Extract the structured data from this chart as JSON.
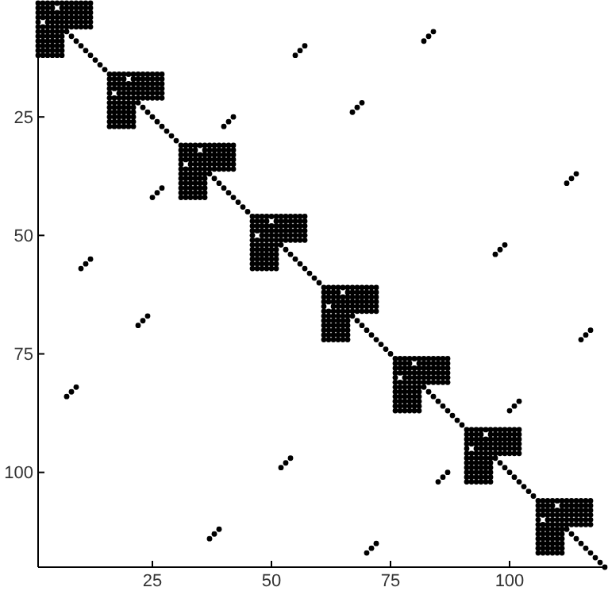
{
  "chart_data": {
    "type": "scatter",
    "xlim": [
      1,
      120
    ],
    "ylim": [
      120,
      1
    ],
    "xticks": [
      25,
      50,
      75,
      100
    ],
    "yticks": [
      25,
      50,
      75,
      100
    ],
    "marker": "circle",
    "series": [
      {
        "color": "#000000",
        "x": [
          1,
          2,
          3,
          4,
          5,
          6,
          7,
          8,
          9,
          10,
          11,
          12,
          1,
          2,
          3,
          4,
          6,
          7,
          8,
          9,
          10,
          11,
          12,
          1,
          2,
          3,
          4,
          5,
          6,
          7,
          8,
          9,
          10,
          11,
          12,
          1,
          2,
          3,
          4,
          5,
          6,
          7,
          8,
          9,
          10,
          11,
          12,
          1,
          3,
          4,
          5,
          6,
          7,
          8,
          9,
          10,
          11,
          12,
          1,
          2,
          3,
          4,
          5,
          6,
          7,
          8,
          9,
          10,
          11,
          12,
          1,
          2,
          3,
          4,
          5,
          6,
          1,
          2,
          3,
          4,
          5,
          6,
          1,
          2,
          3,
          4,
          5,
          6,
          1,
          2,
          3,
          4,
          5,
          6,
          1,
          2,
          3,
          4,
          5,
          6,
          1,
          2,
          3,
          4,
          5,
          6
        ],
        "values": [
          1,
          1,
          1,
          1,
          1,
          1,
          1,
          1,
          1,
          1,
          1,
          1,
          2,
          2,
          2,
          2,
          2,
          2,
          2,
          2,
          2,
          2,
          2,
          3,
          3,
          3,
          3,
          3,
          3,
          3,
          3,
          3,
          3,
          3,
          3,
          4,
          4,
          4,
          4,
          4,
          4,
          4,
          4,
          4,
          4,
          4,
          4,
          5,
          5,
          5,
          5,
          5,
          5,
          5,
          5,
          5,
          5,
          5,
          6,
          6,
          6,
          6,
          6,
          6,
          6,
          6,
          6,
          6,
          6,
          6,
          7,
          7,
          7,
          7,
          7,
          7,
          8,
          8,
          8,
          8,
          8,
          8,
          9,
          9,
          9,
          9,
          9,
          9,
          10,
          10,
          10,
          10,
          10,
          10,
          11,
          11,
          11,
          11,
          11,
          11,
          12,
          12,
          12,
          12,
          12,
          12
        ]
      },
      {
        "color": "#000000",
        "x": [
          16,
          17,
          18,
          19,
          20,
          21,
          22,
          23,
          24,
          25,
          26,
          27,
          16,
          17,
          18,
          19,
          21,
          22,
          23,
          24,
          25,
          26,
          27,
          16,
          17,
          18,
          19,
          20,
          21,
          22,
          23,
          24,
          25,
          26,
          27,
          16,
          17,
          18,
          19,
          20,
          21,
          22,
          23,
          24,
          25,
          26,
          27,
          16,
          18,
          19,
          20,
          21,
          22,
          23,
          24,
          25,
          26,
          27,
          16,
          17,
          18,
          19,
          20,
          21,
          22,
          23,
          24,
          25,
          26,
          27,
          16,
          17,
          18,
          19,
          20,
          21,
          16,
          17,
          18,
          19,
          20,
          21,
          16,
          17,
          18,
          19,
          20,
          21,
          16,
          17,
          18,
          19,
          20,
          21,
          16,
          17,
          18,
          19,
          20,
          21,
          16,
          17,
          18,
          19,
          20,
          21
        ],
        "values": [
          16,
          16,
          16,
          16,
          16,
          16,
          16,
          16,
          16,
          16,
          16,
          16,
          17,
          17,
          17,
          17,
          17,
          17,
          17,
          17,
          17,
          17,
          17,
          18,
          18,
          18,
          18,
          18,
          18,
          18,
          18,
          18,
          18,
          18,
          18,
          19,
          19,
          19,
          19,
          19,
          19,
          19,
          19,
          19,
          19,
          19,
          19,
          20,
          20,
          20,
          20,
          20,
          20,
          20,
          20,
          20,
          20,
          20,
          21,
          21,
          21,
          21,
          21,
          21,
          21,
          21,
          21,
          21,
          21,
          21,
          22,
          22,
          22,
          22,
          22,
          22,
          23,
          23,
          23,
          23,
          23,
          23,
          24,
          24,
          24,
          24,
          24,
          24,
          25,
          25,
          25,
          25,
          25,
          25,
          26,
          26,
          26,
          26,
          26,
          26,
          27,
          27,
          27,
          27,
          27,
          27
        ]
      },
      {
        "color": "#000000",
        "x": [
          31,
          32,
          33,
          34,
          35,
          36,
          37,
          38,
          39,
          40,
          41,
          42,
          31,
          32,
          33,
          34,
          36,
          37,
          38,
          39,
          40,
          41,
          42,
          31,
          32,
          33,
          34,
          35,
          36,
          37,
          38,
          39,
          40,
          41,
          42,
          31,
          32,
          33,
          34,
          35,
          36,
          37,
          38,
          39,
          40,
          41,
          42,
          31,
          33,
          34,
          35,
          36,
          37,
          38,
          39,
          40,
          41,
          42,
          31,
          32,
          33,
          34,
          35,
          36,
          37,
          38,
          39,
          40,
          41,
          42,
          31,
          32,
          33,
          34,
          35,
          36,
          31,
          32,
          33,
          34,
          35,
          36,
          31,
          32,
          33,
          34,
          35,
          36,
          31,
          32,
          33,
          34,
          35,
          36,
          31,
          32,
          33,
          34,
          35,
          36,
          31,
          32,
          33,
          34,
          35,
          36
        ],
        "values": [
          31,
          31,
          31,
          31,
          31,
          31,
          31,
          31,
          31,
          31,
          31,
          31,
          32,
          32,
          32,
          32,
          32,
          32,
          32,
          32,
          32,
          32,
          32,
          33,
          33,
          33,
          33,
          33,
          33,
          33,
          33,
          33,
          33,
          33,
          33,
          34,
          34,
          34,
          34,
          34,
          34,
          34,
          34,
          34,
          34,
          34,
          34,
          35,
          35,
          35,
          35,
          35,
          35,
          35,
          35,
          35,
          35,
          35,
          36,
          36,
          36,
          36,
          36,
          36,
          36,
          36,
          36,
          36,
          36,
          36,
          37,
          37,
          37,
          37,
          37,
          37,
          38,
          38,
          38,
          38,
          38,
          38,
          39,
          39,
          39,
          39,
          39,
          39,
          40,
          40,
          40,
          40,
          40,
          40,
          41,
          41,
          41,
          41,
          41,
          41,
          42,
          42,
          42,
          42,
          42,
          42
        ]
      },
      {
        "color": "#000000",
        "x": [
          46,
          47,
          48,
          49,
          50,
          51,
          52,
          53,
          54,
          55,
          56,
          57,
          46,
          47,
          48,
          49,
          51,
          52,
          53,
          54,
          55,
          56,
          57,
          46,
          47,
          48,
          49,
          50,
          51,
          52,
          53,
          54,
          55,
          56,
          57,
          46,
          47,
          48,
          49,
          50,
          51,
          52,
          53,
          54,
          55,
          56,
          57,
          46,
          48,
          49,
          50,
          51,
          52,
          53,
          54,
          55,
          56,
          57,
          46,
          47,
          48,
          49,
          50,
          51,
          52,
          53,
          54,
          55,
          56,
          57,
          46,
          47,
          48,
          49,
          50,
          51,
          46,
          47,
          48,
          49,
          50,
          51,
          46,
          47,
          48,
          49,
          50,
          51,
          46,
          47,
          48,
          49,
          50,
          51,
          46,
          47,
          48,
          49,
          50,
          51,
          46,
          47,
          48,
          49,
          50,
          51
        ],
        "values": [
          46,
          46,
          46,
          46,
          46,
          46,
          46,
          46,
          46,
          46,
          46,
          46,
          47,
          47,
          47,
          47,
          47,
          47,
          47,
          47,
          47,
          47,
          47,
          48,
          48,
          48,
          48,
          48,
          48,
          48,
          48,
          48,
          48,
          48,
          48,
          49,
          49,
          49,
          49,
          49,
          49,
          49,
          49,
          49,
          49,
          49,
          49,
          50,
          50,
          50,
          50,
          50,
          50,
          50,
          50,
          50,
          50,
          50,
          51,
          51,
          51,
          51,
          51,
          51,
          51,
          51,
          51,
          51,
          51,
          51,
          52,
          52,
          52,
          52,
          52,
          52,
          53,
          53,
          53,
          53,
          53,
          53,
          54,
          54,
          54,
          54,
          54,
          54,
          55,
          55,
          55,
          55,
          55,
          55,
          56,
          56,
          56,
          56,
          56,
          56,
          57,
          57,
          57,
          57,
          57,
          57
        ]
      },
      {
        "color": "#000000",
        "x": [
          61,
          62,
          63,
          64,
          65,
          66,
          67,
          68,
          69,
          70,
          71,
          72,
          61,
          62,
          63,
          64,
          66,
          67,
          68,
          69,
          70,
          71,
          72,
          61,
          62,
          63,
          64,
          65,
          66,
          67,
          68,
          69,
          70,
          71,
          72,
          61,
          62,
          63,
          64,
          65,
          66,
          67,
          68,
          69,
          70,
          71,
          72,
          61,
          63,
          64,
          65,
          66,
          67,
          68,
          69,
          70,
          71,
          72,
          61,
          62,
          63,
          64,
          65,
          66,
          67,
          68,
          69,
          70,
          71,
          72,
          61,
          62,
          63,
          64,
          65,
          66,
          61,
          62,
          63,
          64,
          65,
          66,
          61,
          62,
          63,
          64,
          65,
          66,
          61,
          62,
          63,
          64,
          65,
          66,
          61,
          62,
          63,
          64,
          65,
          66,
          61,
          62,
          63,
          64,
          65,
          66
        ],
        "values": [
          61,
          61,
          61,
          61,
          61,
          61,
          61,
          61,
          61,
          61,
          61,
          61,
          62,
          62,
          62,
          62,
          62,
          62,
          62,
          62,
          62,
          62,
          62,
          63,
          63,
          63,
          63,
          63,
          63,
          63,
          63,
          63,
          63,
          63,
          63,
          64,
          64,
          64,
          64,
          64,
          64,
          64,
          64,
          64,
          64,
          64,
          64,
          65,
          65,
          65,
          65,
          65,
          65,
          65,
          65,
          65,
          65,
          65,
          66,
          66,
          66,
          66,
          66,
          66,
          66,
          66,
          66,
          66,
          66,
          66,
          67,
          67,
          67,
          67,
          67,
          67,
          68,
          68,
          68,
          68,
          68,
          68,
          69,
          69,
          69,
          69,
          69,
          69,
          70,
          70,
          70,
          70,
          70,
          70,
          71,
          71,
          71,
          71,
          71,
          71,
          72,
          72,
          72,
          72,
          72,
          72
        ]
      },
      {
        "color": "#000000",
        "x": [
          76,
          77,
          78,
          79,
          80,
          81,
          82,
          83,
          84,
          85,
          86,
          87,
          76,
          77,
          78,
          79,
          81,
          82,
          83,
          84,
          85,
          86,
          87,
          76,
          77,
          78,
          79,
          80,
          81,
          82,
          83,
          84,
          85,
          86,
          87,
          76,
          77,
          78,
          79,
          80,
          81,
          82,
          83,
          84,
          85,
          86,
          87,
          76,
          78,
          79,
          80,
          81,
          82,
          83,
          84,
          85,
          86,
          87,
          76,
          77,
          78,
          79,
          80,
          81,
          82,
          83,
          84,
          85,
          86,
          87,
          76,
          77,
          78,
          79,
          80,
          81,
          76,
          77,
          78,
          79,
          80,
          81,
          76,
          77,
          78,
          79,
          80,
          81,
          76,
          77,
          78,
          79,
          80,
          81,
          76,
          77,
          78,
          79,
          80,
          81,
          76,
          77,
          78,
          79,
          80,
          81
        ],
        "values": [
          76,
          76,
          76,
          76,
          76,
          76,
          76,
          76,
          76,
          76,
          76,
          76,
          77,
          77,
          77,
          77,
          77,
          77,
          77,
          77,
          77,
          77,
          77,
          78,
          78,
          78,
          78,
          78,
          78,
          78,
          78,
          78,
          78,
          78,
          78,
          79,
          79,
          79,
          79,
          79,
          79,
          79,
          79,
          79,
          79,
          79,
          79,
          80,
          80,
          80,
          80,
          80,
          80,
          80,
          80,
          80,
          80,
          80,
          81,
          81,
          81,
          81,
          81,
          81,
          81,
          81,
          81,
          81,
          81,
          81,
          82,
          82,
          82,
          82,
          82,
          82,
          83,
          83,
          83,
          83,
          83,
          83,
          84,
          84,
          84,
          84,
          84,
          84,
          85,
          85,
          85,
          85,
          85,
          85,
          86,
          86,
          86,
          86,
          86,
          86,
          87,
          87,
          87,
          87,
          87,
          87
        ]
      },
      {
        "color": "#000000",
        "x": [
          91,
          92,
          93,
          94,
          95,
          96,
          97,
          98,
          99,
          100,
          101,
          102,
          91,
          92,
          93,
          94,
          96,
          97,
          98,
          99,
          100,
          101,
          102,
          91,
          92,
          93,
          94,
          95,
          96,
          97,
          98,
          99,
          100,
          101,
          102,
          91,
          92,
          93,
          94,
          95,
          96,
          97,
          98,
          99,
          100,
          101,
          102,
          91,
          93,
          94,
          95,
          96,
          97,
          98,
          99,
          100,
          101,
          102,
          91,
          92,
          93,
          94,
          95,
          96,
          97,
          98,
          99,
          100,
          101,
          102,
          91,
          92,
          93,
          94,
          95,
          96,
          91,
          92,
          93,
          94,
          95,
          96,
          91,
          92,
          93,
          94,
          95,
          96,
          91,
          92,
          93,
          94,
          95,
          96,
          91,
          92,
          93,
          94,
          95,
          96,
          91,
          92,
          93,
          94,
          95,
          96
        ],
        "values": [
          91,
          91,
          91,
          91,
          91,
          91,
          91,
          91,
          91,
          91,
          91,
          91,
          92,
          92,
          92,
          92,
          92,
          92,
          92,
          92,
          92,
          92,
          92,
          93,
          93,
          93,
          93,
          93,
          93,
          93,
          93,
          93,
          93,
          93,
          93,
          94,
          94,
          94,
          94,
          94,
          94,
          94,
          94,
          94,
          94,
          94,
          94,
          95,
          95,
          95,
          95,
          95,
          95,
          95,
          95,
          95,
          95,
          95,
          96,
          96,
          96,
          96,
          96,
          96,
          96,
          96,
          96,
          96,
          96,
          96,
          97,
          97,
          97,
          97,
          97,
          97,
          98,
          98,
          98,
          98,
          98,
          98,
          99,
          99,
          99,
          99,
          99,
          99,
          100,
          100,
          100,
          100,
          100,
          100,
          101,
          101,
          101,
          101,
          101,
          101,
          102,
          102,
          102,
          102,
          102,
          102
        ]
      },
      {
        "color": "#000000",
        "x": [
          106,
          107,
          108,
          109,
          110,
          111,
          112,
          113,
          114,
          115,
          116,
          117,
          106,
          107,
          108,
          109,
          111,
          112,
          113,
          114,
          115,
          116,
          117,
          106,
          107,
          108,
          109,
          110,
          111,
          112,
          113,
          114,
          115,
          116,
          117,
          106,
          107,
          108,
          109,
          110,
          111,
          112,
          113,
          114,
          115,
          116,
          117,
          106,
          108,
          109,
          110,
          111,
          112,
          113,
          114,
          115,
          116,
          117,
          106,
          107,
          108,
          109,
          110,
          111,
          112,
          113,
          114,
          115,
          116,
          117,
          106,
          107,
          108,
          109,
          110,
          111,
          106,
          107,
          108,
          109,
          110,
          111,
          106,
          107,
          108,
          109,
          110,
          111,
          106,
          107,
          108,
          109,
          110,
          111,
          106,
          107,
          108,
          109,
          110,
          111,
          106,
          107,
          108,
          109,
          110,
          111
        ],
        "values": [
          106,
          106,
          106,
          106,
          106,
          106,
          106,
          106,
          106,
          106,
          106,
          106,
          107,
          107,
          107,
          107,
          107,
          107,
          107,
          107,
          107,
          107,
          107,
          108,
          108,
          108,
          108,
          108,
          108,
          108,
          108,
          108,
          108,
          108,
          108,
          109,
          109,
          109,
          109,
          109,
          109,
          109,
          109,
          109,
          109,
          109,
          109,
          110,
          110,
          110,
          110,
          110,
          110,
          110,
          110,
          110,
          110,
          110,
          111,
          111,
          111,
          111,
          111,
          111,
          111,
          111,
          111,
          111,
          111,
          111,
          112,
          112,
          112,
          112,
          112,
          112,
          113,
          113,
          113,
          113,
          113,
          113,
          114,
          114,
          114,
          114,
          114,
          114,
          115,
          115,
          115,
          115,
          115,
          115,
          116,
          116,
          116,
          116,
          116,
          116,
          117,
          117,
          117,
          117,
          117,
          117
        ]
      },
      {
        "color": "#000000",
        "x": [
          7,
          8,
          9,
          10,
          11,
          12,
          13,
          14,
          15,
          22,
          23,
          24,
          25,
          26,
          27,
          28,
          29,
          30,
          37,
          38,
          39,
          40,
          41,
          42,
          43,
          44,
          45,
          52,
          53,
          54,
          55,
          56,
          57,
          58,
          59,
          60,
          67,
          68,
          69,
          70,
          71,
          72,
          73,
          74,
          75,
          82,
          83,
          84,
          85,
          86,
          87,
          88,
          89,
          90,
          97,
          98,
          99,
          100,
          101,
          102,
          103,
          104,
          105,
          112,
          113,
          114,
          115,
          116,
          117,
          118,
          119,
          120
        ],
        "values": [
          7,
          8,
          9,
          10,
          11,
          12,
          13,
          14,
          15,
          22,
          23,
          24,
          25,
          26,
          27,
          28,
          29,
          30,
          37,
          38,
          39,
          40,
          41,
          42,
          43,
          44,
          45,
          52,
          53,
          54,
          55,
          56,
          57,
          58,
          59,
          60,
          67,
          68,
          69,
          70,
          71,
          72,
          73,
          74,
          75,
          82,
          83,
          84,
          85,
          86,
          87,
          88,
          89,
          90,
          97,
          98,
          99,
          100,
          101,
          102,
          103,
          104,
          105,
          112,
          113,
          114,
          115,
          116,
          117,
          118,
          119,
          120
        ]
      },
      {
        "color": "#000000",
        "x": [
          7,
          8,
          9,
          84,
          83,
          82,
          52,
          53,
          54,
          99,
          98,
          97,
          37,
          38,
          39,
          114,
          113,
          112,
          70,
          71,
          72,
          117,
          116,
          115,
          55,
          56,
          57,
          12,
          11,
          10,
          67,
          68,
          69,
          24,
          23,
          22,
          25,
          26,
          27,
          42,
          41,
          40,
          85,
          86,
          87,
          102,
          101,
          100
        ],
        "values": [
          84,
          83,
          82,
          7,
          8,
          9,
          99,
          98,
          97,
          52,
          53,
          54,
          114,
          113,
          112,
          37,
          38,
          39,
          117,
          116,
          115,
          70,
          71,
          72,
          12,
          11,
          10,
          55,
          56,
          57,
          24,
          23,
          22,
          67,
          68,
          69,
          42,
          41,
          40,
          25,
          26,
          27,
          102,
          101,
          100,
          85,
          86,
          87
        ]
      }
    ]
  }
}
